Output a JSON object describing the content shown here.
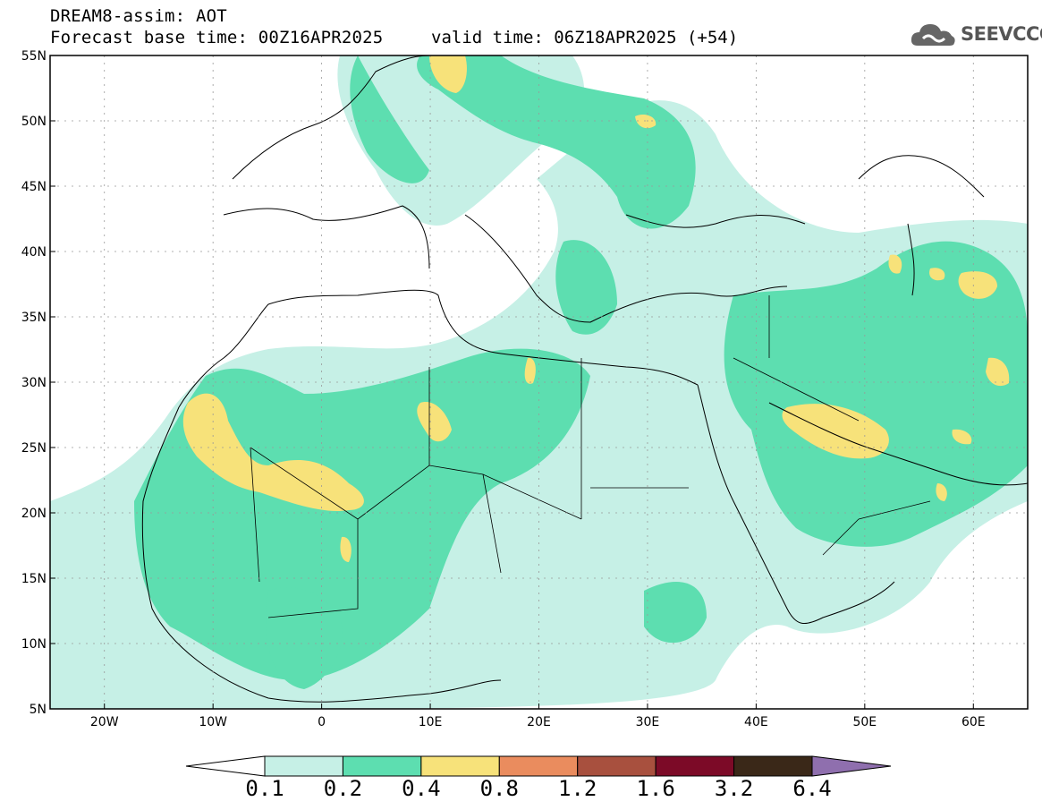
{
  "header": {
    "title": "DREAM8-assim: AOT",
    "forecast_base": "Forecast base time: 00Z16APR2025",
    "valid_time": "valid time: 06Z18APR2025 (+54)"
  },
  "logo": {
    "text": "SEEVCCC",
    "icon": "cloud-icon"
  },
  "axes": {
    "lon_labels": [
      "20W",
      "10W",
      "0",
      "10E",
      "20E",
      "30E",
      "40E",
      "50E",
      "60E"
    ],
    "lat_labels": [
      "55N",
      "50N",
      "45N",
      "40N",
      "35N",
      "30N",
      "25N",
      "20N",
      "15N",
      "10N",
      "5N"
    ],
    "lon_range": [
      -25,
      65
    ],
    "lat_range": [
      5,
      55
    ]
  },
  "colorbar": {
    "labels": [
      "0.1",
      "0.2",
      "0.4",
      "0.8",
      "1.2",
      "1.6",
      "3.2",
      "6.4"
    ],
    "colors": [
      "#c6f0e6",
      "#5ddeb0",
      "#f7e27a",
      "#ea8c5e",
      "#a8503e",
      "#7c0a27",
      "#3a2818",
      "#8f6fae"
    ],
    "under_color": "#ffffff"
  }
}
